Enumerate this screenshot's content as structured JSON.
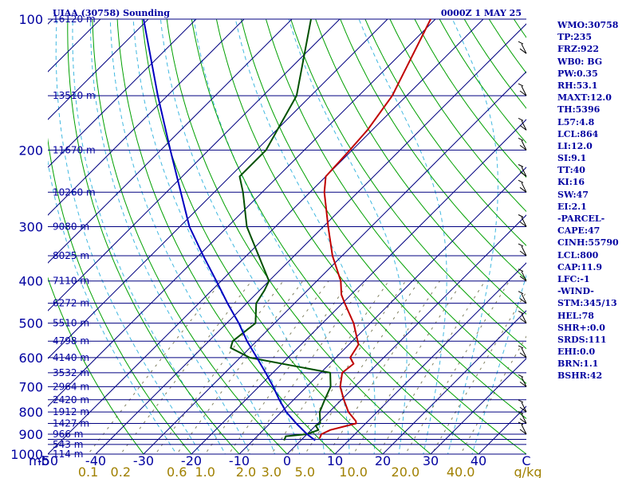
{
  "header": {
    "title_left": "UIAA (30758) Sounding",
    "title_right": "0000Z  1 MAY 25"
  },
  "colors": {
    "isobar": "#000080",
    "dry_adiabat": "#00a000",
    "moist_adiabat": "#40b8e0",
    "mixing_ratio": "#808060",
    "temperature": "#c00000",
    "dewpoint": "#005000",
    "parcel": "#0000c0",
    "text": "#0000a0",
    "mixing_label": "#a08000"
  },
  "chart_data": {
    "type": "line",
    "subtype": "skew-T log-P sounding diagram",
    "station": "UIAA (30758)",
    "time": "0000Z  1 MAY 25",
    "pressure_axis": {
      "unit": "mb",
      "scale": "log",
      "range": [
        1000,
        100
      ],
      "tick_labels": [
        "100",
        "200",
        "300",
        "400",
        "500",
        "600",
        "700",
        "800",
        "900",
        "1000"
      ]
    },
    "temperature_axis": {
      "unit": "C",
      "range": [
        -50,
        50
      ],
      "tick_labels": [
        "-50",
        "-40",
        "-30",
        "-20",
        "-10",
        "0",
        "10",
        "20",
        "30",
        "40",
        "C"
      ]
    },
    "mixing_ratio_labels": [
      "0.1",
      "0.2",
      "0.6",
      "1.0",
      "2.0",
      "3.0",
      "5.0",
      "10.0",
      "20.0",
      "40.0",
      "g/kg"
    ],
    "isobar_pressures": [
      100,
      150,
      200,
      250,
      300,
      350,
      400,
      450,
      500,
      550,
      600,
      650,
      700,
      750,
      800,
      850,
      900,
      925,
      950,
      1000
    ],
    "height_labels": [
      {
        "p": 100,
        "label": "16120 m"
      },
      {
        "p": 150,
        "label": "13510 m"
      },
      {
        "p": 200,
        "label": "11670 m"
      },
      {
        "p": 250,
        "label": "10260 m"
      },
      {
        "p": 300,
        "label": "9080 m"
      },
      {
        "p": 350,
        "label": "8025 m"
      },
      {
        "p": 400,
        "label": "7110 m"
      },
      {
        "p": 450,
        "label": "6272 m"
      },
      {
        "p": 500,
        "label": "5510 m"
      },
      {
        "p": 550,
        "label": "4798 m"
      },
      {
        "p": 600,
        "label": "4140 m"
      },
      {
        "p": 650,
        "label": "3532 m"
      },
      {
        "p": 700,
        "label": "2964 m"
      },
      {
        "p": 750,
        "label": "2420 m"
      },
      {
        "p": 800,
        "label": "1912 m"
      },
      {
        "p": 850,
        "label": "1427 m"
      },
      {
        "p": 900,
        "label": "966 m"
      },
      {
        "p": 950,
        "label": "543 m"
      },
      {
        "p": 1000,
        "label": "114 m"
      }
    ],
    "series": [
      {
        "name": "temperature",
        "points": [
          {
            "p": 920,
            "t": 3.5
          },
          {
            "p": 900,
            "t": 3.0
          },
          {
            "p": 880,
            "t": 4.0
          },
          {
            "p": 850,
            "t": 8.0
          },
          {
            "p": 840,
            "t": 7.5
          },
          {
            "p": 800,
            "t": 4.0
          },
          {
            "p": 750,
            "t": 0.5
          },
          {
            "p": 700,
            "t": -3.0
          },
          {
            "p": 650,
            "t": -5.5
          },
          {
            "p": 620,
            "t": -5.0
          },
          {
            "p": 600,
            "t": -7.0
          },
          {
            "p": 560,
            "t": -8.0
          },
          {
            "p": 500,
            "t": -13.5
          },
          {
            "p": 450,
            "t": -19.5
          },
          {
            "p": 430,
            "t": -22.0
          },
          {
            "p": 400,
            "t": -25.0
          },
          {
            "p": 350,
            "t": -32.0
          },
          {
            "p": 300,
            "t": -39.0
          },
          {
            "p": 250,
            "t": -47.0
          },
          {
            "p": 230,
            "t": -50.0
          },
          {
            "p": 200,
            "t": -50.5
          },
          {
            "p": 180,
            "t": -51.0
          },
          {
            "p": 150,
            "t": -53.0
          },
          {
            "p": 100,
            "t": -61.0
          }
        ]
      },
      {
        "name": "dewpoint",
        "points": [
          {
            "p": 930,
            "t": -3.5
          },
          {
            "p": 910,
            "t": -4.0
          },
          {
            "p": 900,
            "t": 0.0
          },
          {
            "p": 880,
            "t": 1.5
          },
          {
            "p": 860,
            "t": 0.0
          },
          {
            "p": 850,
            "t": 0.5
          },
          {
            "p": 800,
            "t": -2.0
          },
          {
            "p": 750,
            "t": -3.5
          },
          {
            "p": 700,
            "t": -5.0
          },
          {
            "p": 650,
            "t": -8.0
          },
          {
            "p": 600,
            "t": -28.0
          },
          {
            "p": 570,
            "t": -34.0
          },
          {
            "p": 550,
            "t": -35.0
          },
          {
            "p": 500,
            "t": -34.0
          },
          {
            "p": 450,
            "t": -38.0
          },
          {
            "p": 420,
            "t": -39.0
          },
          {
            "p": 400,
            "t": -40.0
          },
          {
            "p": 300,
            "t": -56.0
          },
          {
            "p": 250,
            "t": -64.0
          },
          {
            "p": 230,
            "t": -68.0
          },
          {
            "p": 200,
            "t": -68.0
          },
          {
            "p": 150,
            "t": -73.0
          },
          {
            "p": 100,
            "t": -86.0
          }
        ]
      },
      {
        "name": "parcel",
        "points": [
          {
            "p": 930,
            "t": 3.0
          },
          {
            "p": 900,
            "t": 0.0
          },
          {
            "p": 850,
            "t": -4.5
          },
          {
            "p": 800,
            "t": -9.0
          },
          {
            "p": 750,
            "t": -13.0
          },
          {
            "p": 700,
            "t": -17.0
          },
          {
            "p": 650,
            "t": -21.5
          },
          {
            "p": 600,
            "t": -26.5
          },
          {
            "p": 550,
            "t": -32.0
          },
          {
            "p": 500,
            "t": -37.5
          },
          {
            "p": 450,
            "t": -44.0
          },
          {
            "p": 400,
            "t": -51.0
          },
          {
            "p": 350,
            "t": -59.0
          },
          {
            "p": 300,
            "t": -68.0
          },
          {
            "p": 250,
            "t": -77.0
          },
          {
            "p": 200,
            "t": -88.0
          },
          {
            "p": 150,
            "t": -102.0
          },
          {
            "p": 100,
            "t": -121.0
          }
        ]
      }
    ],
    "wind_barbs_pressures": [
      900,
      850,
      800,
      700,
      600,
      500,
      450,
      400,
      350,
      300,
      250,
      230,
      200,
      180,
      150,
      120
    ]
  },
  "sidebar": {
    "stats": [
      "WMO:30758",
      "TP:235",
      "FRZ:922",
      "WB0: BG",
      "PW:0.35",
      "RH:53.1",
      "MAXT:12.0",
      "TH:5396",
      "L57:4.8",
      "LCL:864",
      "LI:12.0",
      "SI:9.1",
      "TT:40",
      "KI:16",
      "SW:47",
      "EI:2.1",
      "-PARCEL-",
      "CAPE:47",
      "CINH:55790",
      "LCL:800",
      "CAP:11.9",
      "LFC:-1",
      "-WIND-",
      "STM:345/13",
      "HEL:78",
      "SHR+:0.0",
      "SRDS:111",
      "EHI:0.0",
      "BRN:1.1",
      "BSHR:42"
    ]
  }
}
